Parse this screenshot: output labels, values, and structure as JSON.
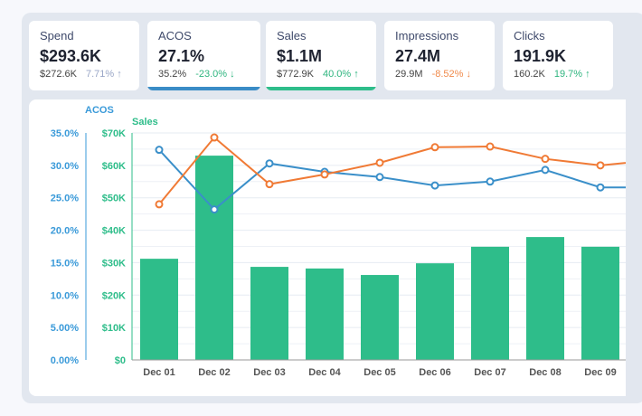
{
  "cards": [
    {
      "title": "Spend",
      "value": "$293.6K",
      "previous": "$272.6K",
      "change": "7.71% ↑",
      "change_color": "#9aa7c7",
      "accent": ""
    },
    {
      "title": "ACOS",
      "value": "27.1%",
      "previous": "35.2%",
      "change": "-23.0% ↓",
      "change_color": "#2fb57f",
      "accent": "#3a8cc6"
    },
    {
      "title": "Sales",
      "value": "$1.1M",
      "previous": "$772.9K",
      "change": "40.0% ↑",
      "change_color": "#2fb57f",
      "accent": "#2ebd8a"
    },
    {
      "title": "Impressions",
      "value": "27.4M",
      "previous": "29.9M",
      "change": "-8.52% ↓",
      "change_color": "#f08a4b",
      "accent": ""
    },
    {
      "title": "Clicks",
      "value": "191.9K",
      "previous": "160.2K",
      "change": "19.7% ↑",
      "change_color": "#2fb57f",
      "accent": ""
    }
  ],
  "chart_data": {
    "type": "bar+line",
    "categories": [
      "Dec 01",
      "Dec 02",
      "Dec 03",
      "Dec 04",
      "Dec 05",
      "Dec 06",
      "Dec 07",
      "Dec 08",
      "Dec 09"
    ],
    "axes": {
      "acos": {
        "label": "ACOS",
        "ticks": [
          "0.00%",
          "5.00%",
          "10.0%",
          "15.0%",
          "20.0%",
          "25.0%",
          "30.0%",
          "35.0%"
        ],
        "range": [
          0,
          35
        ],
        "color": "#3a9ad9"
      },
      "sales": {
        "label": "Sales",
        "ticks": [
          "$0",
          "$10K",
          "$20K",
          "$30K",
          "$40K",
          "$50K",
          "$60K",
          "$70K"
        ],
        "range": [
          0,
          70000
        ],
        "color": "#2ebd8a"
      }
    },
    "series": [
      {
        "name": "Sales",
        "type": "bar",
        "axis": "sales",
        "color": "#2ebd8a",
        "values": [
          31200,
          63000,
          28700,
          28200,
          26200,
          29800,
          34900,
          37900,
          34900
        ]
      },
      {
        "name": "ACOS",
        "type": "line",
        "axis": "acos",
        "color": "#3a8fc9",
        "values": [
          32.4,
          23.2,
          30.3,
          29.0,
          28.2,
          26.9,
          27.5,
          29.3,
          26.6
        ]
      },
      {
        "type": "line",
        "axis": "acos",
        "color": "#f07a35",
        "values": [
          24.0,
          34.3,
          27.1,
          28.6,
          30.4,
          32.8,
          32.9,
          31.0,
          30.0
        ]
      }
    ],
    "grid": true
  }
}
